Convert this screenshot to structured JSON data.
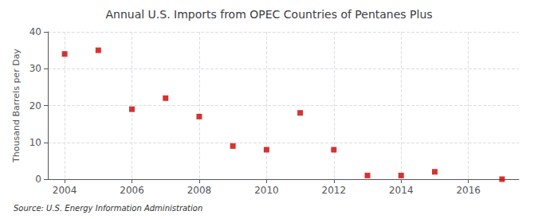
{
  "chart_data": {
    "type": "scatter",
    "title": "Annual U.S. Imports from OPEC Countries of Pentanes Plus",
    "ylabel": "Thousand Barrels per Day",
    "annotations": [
      "Source: U.S. Energy Information Administration"
    ],
    "x": [
      2004,
      2005,
      2006,
      2007,
      2008,
      2009,
      2010,
      2011,
      2012,
      2013,
      2014,
      2015,
      2017
    ],
    "values": [
      34,
      35,
      19,
      22,
      17,
      9,
      8,
      18,
      8,
      1,
      1,
      2,
      0
    ],
    "color": "#cc0000",
    "marker": "square",
    "xlim": [
      2003.5,
      2017.5
    ],
    "xticks": [
      2004,
      2006,
      2008,
      2010,
      2012,
      2014,
      2016
    ],
    "ylim": [
      0,
      40
    ],
    "yticks": [
      0,
      10,
      20,
      30,
      40
    ],
    "grid": true
  }
}
